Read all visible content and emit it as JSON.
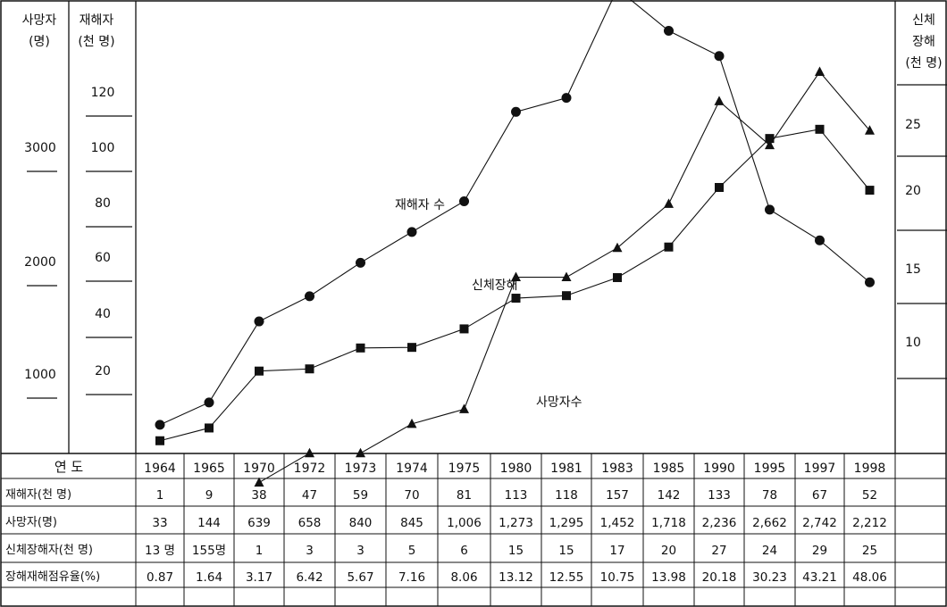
{
  "axis_labels": {
    "left1_line1": "사망자",
    "left1_line2": "(명)",
    "left2_line1": "재해자",
    "left2_line2": "(천 명)",
    "right_line1": "신체",
    "right_line2": "장해",
    "right_line3": "(천 명)"
  },
  "left1_ticks": [
    "3000",
    "2000",
    "1000"
  ],
  "left2_ticks": [
    "120",
    "100",
    "80",
    "60",
    "40",
    "20"
  ],
  "right_ticks": [
    "25",
    "20",
    "15",
    "10"
  ],
  "series_labels": {
    "injured": "재해자 수",
    "disabled": "신체장해",
    "deaths": "사망자수"
  },
  "chart_data": {
    "type": "line",
    "x": [
      "1964",
      "1965",
      "1970",
      "1972",
      "1973",
      "1974",
      "1975",
      "1980",
      "1981",
      "1983",
      "1985",
      "1990",
      "1995",
      "1997",
      "1998"
    ],
    "series": [
      {
        "name": "재해자 수",
        "axis": "left2",
        "values": [
          1,
          9,
          38,
          47,
          59,
          70,
          81,
          113,
          118,
          157,
          142,
          133,
          78,
          67,
          52
        ]
      },
      {
        "name": "사망자수",
        "axis": "left1",
        "values": [
          33,
          144,
          639,
          658,
          840,
          845,
          1006,
          1273,
          1295,
          1452,
          1718,
          2236,
          2662,
          2742,
          2212
        ]
      },
      {
        "name": "신체장해",
        "axis": "right",
        "values": [
          null,
          null,
          1,
          3,
          3,
          5,
          6,
          15,
          15,
          17,
          20,
          27,
          24,
          29,
          25
        ]
      }
    ]
  },
  "table": {
    "header_label": "연    도",
    "rows": [
      {
        "label": "재해자(천 명)",
        "values": [
          "1",
          "9",
          "38",
          "47",
          "59",
          "70",
          "81",
          "113",
          "118",
          "157",
          "142",
          "133",
          "78",
          "67",
          "52"
        ]
      },
      {
        "label": "사망자(명)",
        "values": [
          "33",
          "144",
          "639",
          "658",
          "840",
          "845",
          "1,006",
          "1,273",
          "1,295",
          "1,452",
          "1,718",
          "2,236",
          "2,662",
          "2,742",
          "2,212"
        ]
      },
      {
        "label": "신체장해자(천 명)",
        "values": [
          "13 명",
          "155명",
          "1",
          "3",
          "3",
          "5",
          "6",
          "15",
          "15",
          "17",
          "20",
          "27",
          "24",
          "29",
          "25"
        ]
      },
      {
        "label": "장해재해점유율(%)",
        "values": [
          "0.87",
          "1.64",
          "3.17",
          "6.42",
          "5.67",
          "7.16",
          "8.06",
          "13.12",
          "12.55",
          "10.75",
          "13.98",
          "20.18",
          "30.23",
          "43.21",
          "48.06"
        ]
      }
    ]
  }
}
